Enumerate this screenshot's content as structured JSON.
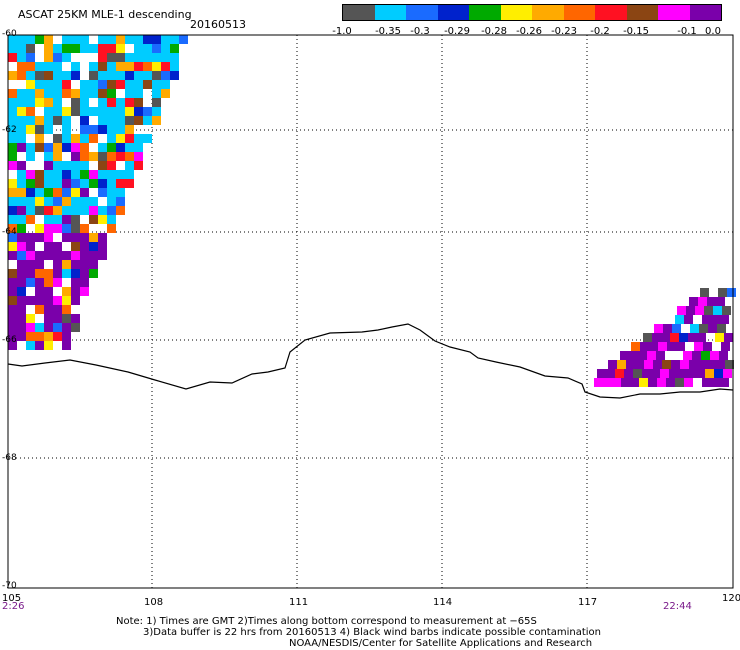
{
  "header": {
    "title": "ASCAT 25KM MLE-1 descending",
    "date": "20160513"
  },
  "colorbar": {
    "colors": [
      "#555555",
      "#00ccff",
      "#1a6bff",
      "#0022cc",
      "#00aa00",
      "#ffee00",
      "#ffaa00",
      "#ff6600",
      "#ff1122",
      "#8b4513",
      "#ff00ff",
      "#7a00aa"
    ],
    "labels": [
      "-1.0",
      "-0.35",
      "-0.3",
      "-0.29",
      "-0.28",
      "-0.26",
      "-0.23",
      "-0.2",
      "-0.15",
      "-0.1",
      "0.0"
    ]
  },
  "map": {
    "lat_labels": [
      "-60",
      "-62",
      "-64",
      "-66",
      "-68",
      "-70"
    ],
    "lon_labels": [
      "105",
      "108",
      "111",
      "114",
      "117",
      "120"
    ],
    "time_labels": [
      "2:26",
      "22:44"
    ],
    "value_range": [
      -1.0,
      0.0
    ]
  },
  "notes": {
    "line1": "Note: 1) Times are GMT 2)Times along bottom correspond to measurement at −65S",
    "line2": "3)Data buffer is 22 hrs from 20160513 4) Black wind barbs indicate possible contamination",
    "line3": "NOAA/NESDIS/Center for Satellite Applications and Research"
  }
}
